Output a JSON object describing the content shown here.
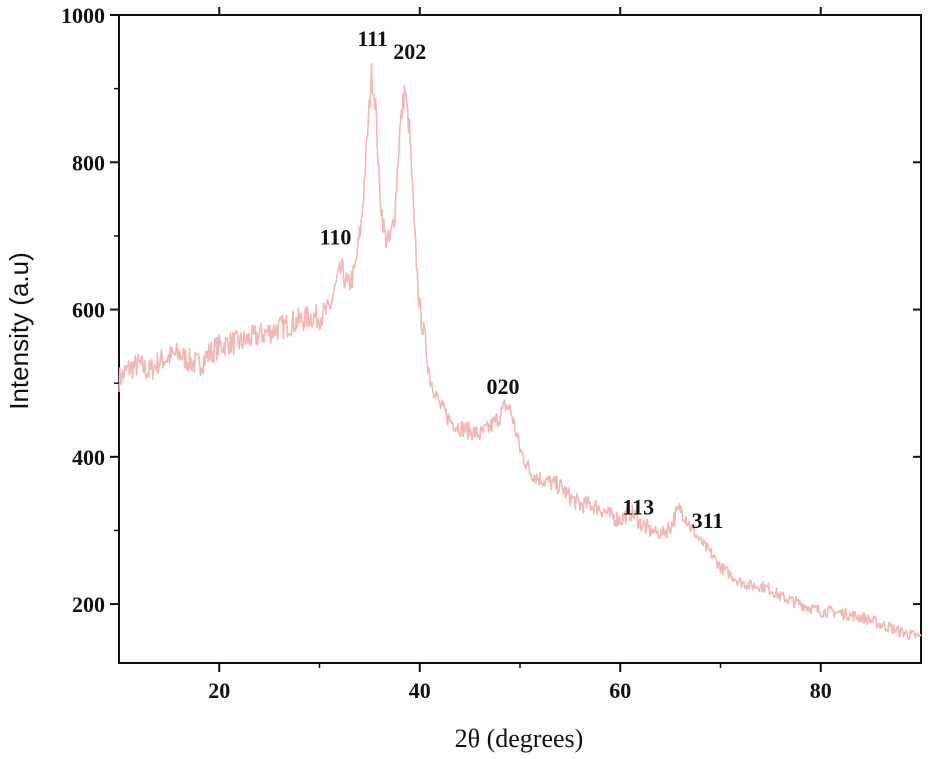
{
  "chart_data": {
    "type": "line",
    "title": "",
    "xlabel": "2θ (degrees)",
    "ylabel": "Intensity (a.u)",
    "xlim": [
      10,
      90
    ],
    "ylim": [
      120,
      1000
    ],
    "x_ticks": [
      20,
      40,
      60,
      80
    ],
    "y_ticks": [
      200,
      400,
      600,
      800,
      1000
    ],
    "grid": false,
    "legend": "none",
    "line_color": "#f2b8b5",
    "series": [
      {
        "x": [
          10,
          11,
          12,
          13,
          14,
          15,
          16,
          17,
          18,
          19,
          20,
          21,
          22,
          23,
          24,
          25,
          26,
          27,
          28,
          29,
          30,
          31,
          31.8,
          32.2,
          32.8,
          33.5,
          34.2,
          34.8,
          35.2,
          35.6,
          36.0,
          36.5,
          37.0,
          37.5,
          38.0,
          38.5,
          39.0,
          39.5,
          40.0,
          40.5,
          41,
          42,
          43,
          44,
          45,
          46,
          47,
          48,
          48.5,
          49,
          49.5,
          50,
          51,
          52,
          53,
          54,
          55,
          56,
          57,
          58,
          59,
          60,
          61,
          61.5,
          62,
          63,
          64,
          65,
          65.5,
          66,
          66.5,
          67,
          68,
          69,
          70,
          71,
          72,
          73,
          74,
          75,
          76,
          77,
          78,
          79,
          80,
          81,
          82,
          83,
          84,
          85,
          86,
          87,
          88,
          89,
          90
        ],
        "y": [
          505,
          520,
          525,
          515,
          530,
          535,
          540,
          530,
          525,
          540,
          550,
          555,
          555,
          560,
          565,
          570,
          575,
          580,
          585,
          590,
          590,
          600,
          640,
          655,
          630,
          650,
          720,
          840,
          920,
          880,
          760,
          700,
          690,
          730,
          840,
          900,
          840,
          700,
          600,
          560,
          510,
          470,
          450,
          440,
          435,
          430,
          440,
          455,
          470,
          465,
          440,
          410,
          380,
          370,
          365,
          360,
          345,
          335,
          335,
          330,
          320,
          315,
          325,
          320,
          310,
          300,
          295,
          305,
          320,
          330,
          320,
          305,
          285,
          270,
          250,
          240,
          230,
          225,
          225,
          220,
          210,
          205,
          200,
          195,
          190,
          190,
          188,
          185,
          182,
          178,
          172,
          168,
          162,
          158,
          155
        ]
      }
    ],
    "annotations": [
      {
        "text": "111",
        "x": 35.3,
        "y": 958
      },
      {
        "text": "202",
        "x": 39.0,
        "y": 940
      },
      {
        "text": "110",
        "x": 31.6,
        "y": 688
      },
      {
        "text": "020",
        "x": 48.3,
        "y": 485
      },
      {
        "text": "113",
        "x": 61.8,
        "y": 322
      },
      {
        "text": "311",
        "x": 68.7,
        "y": 303
      }
    ]
  }
}
